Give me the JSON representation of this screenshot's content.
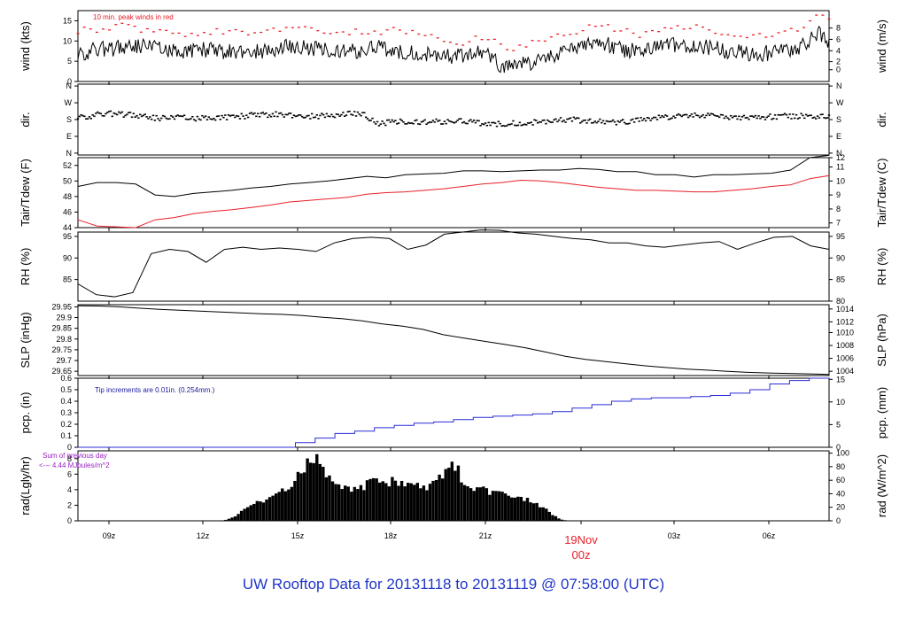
{
  "footer_title": "UW Rooftop Data for 20131118  to  20131119 @ 07:58:00  (UTC)",
  "colors": {
    "axis": "#000000",
    "red": "#e8202a",
    "blue": "#2b2bd8",
    "purple": "#9a1fc4",
    "note_blue": "#1a1aa0"
  },
  "date_label": {
    "day": "19Nov",
    "hour": "00z",
    "color": "#e8202a"
  },
  "chart_data": [
    {
      "type": "line",
      "x_axis": {
        "unit": "hour UTC",
        "range": [
          7.97,
          31.97
        ],
        "tick_labels": [
          "09z",
          "12z",
          "15z",
          "18z",
          "21z",
          "03z",
          "06z"
        ]
      },
      "ylabel": "wind (kts)",
      "ylim": [
        0,
        17.5
      ],
      "yticks": [
        0,
        5,
        10,
        15
      ],
      "y2label": "wind (m/s)",
      "y2ticks": [
        0,
        2,
        4,
        6,
        8
      ],
      "annotation": "10 min. peak winds in red",
      "series": [
        {
          "color": "#000000",
          "values": [
            7,
            7.5,
            8,
            8.2,
            8.8,
            9,
            8.5,
            8,
            7.5,
            7.8,
            8,
            7.5,
            7.2,
            7.5,
            7.3,
            7.5,
            8,
            8.8,
            8.5,
            8.2,
            7.8,
            7.5,
            7.5,
            7.7,
            8.5,
            7.8,
            7.5,
            7.2,
            6.8,
            6.5,
            6,
            6.8,
            7,
            6.5,
            3,
            4,
            4.5,
            5.5,
            6.5,
            7.5,
            8,
            9,
            9.5,
            8,
            7.5,
            7.6,
            8.5,
            9,
            8.8,
            8.5,
            8.5,
            8,
            7.5,
            7.2,
            6.8,
            7,
            7.5,
            8,
            9,
            12,
            10
          ]
        },
        {
          "color": "#e8202a",
          "values": [
            12.5,
            13,
            12.8,
            13.5,
            13.8,
            12.5,
            12.8,
            12,
            11.5,
            12,
            11.8,
            12.3,
            12.2,
            12.5,
            12,
            12.2,
            13,
            13.5,
            13.4,
            12.8,
            12.2,
            12,
            12.3,
            12,
            12.2,
            12.8,
            12.3,
            12,
            11.5,
            11,
            9,
            9.5,
            11,
            10.5,
            8,
            8,
            9.5,
            10.5,
            11,
            12,
            12.5,
            13.5,
            14,
            13,
            12.5,
            11.5,
            12,
            12.8,
            13.5,
            13.5,
            13.2,
            12.5,
            11.8,
            11.5,
            11.2,
            11.5,
            12,
            12.5,
            13.5,
            16.5,
            15.5
          ]
        }
      ]
    },
    {
      "type": "scatter",
      "ylabel": "dir.",
      "y2label": "dir.",
      "ytick_labels": [
        "N",
        "E",
        "S",
        "W",
        "N"
      ],
      "series": [
        {
          "color": "#000000",
          "values": [
            195,
            200,
            210,
            212,
            205,
            200,
            190,
            188,
            192,
            187,
            190,
            193,
            195,
            200,
            205,
            206,
            207,
            200,
            197,
            200,
            205,
            210,
            215,
            160,
            165,
            170,
            168,
            165,
            170,
            172,
            168,
            162,
            158,
            160,
            162,
            165,
            170,
            175,
            180,
            175,
            170,
            165,
            168,
            173,
            180,
            190,
            198,
            200,
            205,
            200,
            190,
            185,
            190,
            193,
            195,
            198,
            197,
            195,
            200
          ]
        }
      ]
    },
    {
      "type": "line",
      "ylabel": "Tair/Tdew (F)",
      "ylim": [
        44,
        53
      ],
      "yticks": [
        44,
        46,
        48,
        50,
        52
      ],
      "y2label": "Tair/Tdew (C)",
      "y2ticks": [
        7,
        8,
        9,
        10,
        11,
        12
      ],
      "series": [
        {
          "name": "Tair",
          "color": "#000000",
          "values": [
            49.3,
            49.8,
            49.8,
            49.6,
            48.2,
            48,
            48.4,
            48.6,
            48.8,
            49.1,
            49.3,
            49.6,
            49.8,
            50,
            50.3,
            50.6,
            50.4,
            50.8,
            50.9,
            51,
            51.3,
            51.3,
            51.2,
            51.3,
            51.4,
            51.4,
            51.6,
            51.5,
            51.2,
            51.2,
            50.8,
            50.8,
            50.5,
            50.8,
            50.8,
            50.9,
            51,
            51.4,
            53,
            53.3
          ]
        },
        {
          "name": "Tdew",
          "color": "#e8202a",
          "values": [
            45,
            44.2,
            44.1,
            44,
            45,
            45.3,
            45.8,
            46.1,
            46.3,
            46.6,
            46.9,
            47.3,
            47.5,
            47.7,
            47.9,
            48.3,
            48.5,
            48.6,
            48.8,
            49,
            49.3,
            49.6,
            49.8,
            50.1,
            50,
            49.8,
            49.5,
            49.2,
            49,
            48.8,
            48.8,
            48.7,
            48.6,
            48.6,
            48.8,
            49,
            49.3,
            49.5,
            50.3,
            50.7
          ]
        }
      ]
    },
    {
      "type": "line",
      "ylabel": "RH (%)",
      "ylim": [
        80,
        96
      ],
      "yticks": [
        85,
        90,
        95
      ],
      "y2label": "RH (%)",
      "y2ticks": [
        80,
        85,
        90,
        95
      ],
      "series": [
        {
          "color": "#000000",
          "values": [
            84,
            81.5,
            81,
            82,
            91,
            92,
            91.5,
            89,
            92,
            92.5,
            92,
            92.3,
            92,
            91.5,
            93.5,
            94.5,
            94.8,
            94.5,
            92,
            93,
            95.5,
            96,
            96.5,
            96.4,
            95.8,
            95.5,
            95,
            94.5,
            94.2,
            93.5,
            93.5,
            92.8,
            92.5,
            93,
            93.5,
            93.8,
            92,
            93.5,
            94.8,
            95,
            92.8,
            92
          ]
        }
      ]
    },
    {
      "type": "line",
      "ylabel": "SLP (inHg)",
      "ylim": [
        29.63,
        29.96
      ],
      "yticks": [
        29.65,
        29.7,
        29.75,
        29.8,
        29.85,
        29.9,
        29.95
      ],
      "y2label": "SLP (hPa)",
      "y2ticks": [
        1004,
        1006,
        1008,
        1010,
        1012,
        1014
      ],
      "series": [
        {
          "color": "#000000",
          "values": [
            29.955,
            29.954,
            29.95,
            29.944,
            29.938,
            29.934,
            29.93,
            29.926,
            29.922,
            29.918,
            29.915,
            29.91,
            29.902,
            29.895,
            29.885,
            29.87,
            29.86,
            29.845,
            29.82,
            29.805,
            29.79,
            29.775,
            29.76,
            29.74,
            29.72,
            29.705,
            29.695,
            29.685,
            29.675,
            29.667,
            29.66,
            29.655,
            29.65,
            29.645,
            29.642,
            29.64,
            29.638,
            29.635
          ]
        }
      ]
    },
    {
      "type": "line",
      "ylabel": "pcp. (in)",
      "ylim": [
        0,
        0.6
      ],
      "yticks": [
        0,
        0.1,
        0.2,
        0.3,
        0.4,
        0.5,
        0.6
      ],
      "y2label": "pcp. (mm)",
      "y2ticks": [
        0,
        5,
        10,
        15
      ],
      "annotation": "Tip increments are 0.01in. (0.254mm.)",
      "series": [
        {
          "color": "#2b2bd8",
          "values": [
            0,
            0,
            0,
            0,
            0,
            0,
            0,
            0,
            0,
            0,
            0,
            0.04,
            0.08,
            0.12,
            0.14,
            0.17,
            0.19,
            0.21,
            0.22,
            0.24,
            0.26,
            0.27,
            0.28,
            0.29,
            0.31,
            0.34,
            0.37,
            0.4,
            0.42,
            0.43,
            0.43,
            0.44,
            0.45,
            0.47,
            0.5,
            0.55,
            0.58,
            0.6,
            0.6
          ]
        }
      ]
    },
    {
      "type": "area",
      "ylabel": "rad(Lgly/hr)",
      "ylim": [
        0,
        9
      ],
      "yticks": [
        0,
        2,
        4,
        6,
        8
      ],
      "y2label": "rad (W/m^2)",
      "y2ticks": [
        0,
        20,
        40,
        60,
        80,
        100
      ],
      "annotations": [
        "Sum of previous day",
        "<--- 4.44 MJoules/m^2"
      ],
      "series": [
        {
          "color": "#000000",
          "values": [
            0,
            0,
            0,
            0,
            0,
            0,
            0,
            0,
            0,
            0,
            0,
            0,
            0,
            0,
            0,
            0,
            0,
            0,
            0,
            0.2,
            0.7,
            1.4,
            2.2,
            2.4,
            2.6,
            3.3,
            3.9,
            4.6,
            6.2,
            7.5,
            8.2,
            6.5,
            5.5,
            4.9,
            4.2,
            4.1,
            4.3,
            5.2,
            5.1,
            4.8,
            5.2,
            5,
            4.3,
            4.5,
            4.2,
            4.7,
            5.9,
            7.6,
            6.6,
            4.1,
            4.3,
            4.3,
            3.7,
            4,
            3.4,
            3.2,
            3,
            2.6,
            2.2,
            1.6,
            0.8,
            0.2,
            0,
            0,
            0,
            0,
            0,
            0,
            0,
            0,
            0,
            0,
            0,
            0,
            0,
            0,
            0,
            0,
            0,
            0,
            0,
            0,
            0,
            0,
            0,
            0,
            0,
            0,
            0,
            0,
            0,
            0,
            0,
            0,
            0,
            0
          ]
        }
      ]
    }
  ]
}
